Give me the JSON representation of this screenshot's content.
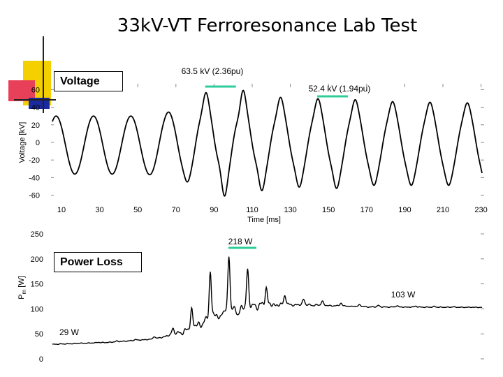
{
  "title": "33kV-VT Ferroresonance Lab Test",
  "accent_colors": {
    "yellow": "#f5d000",
    "red": "#e9405a",
    "blue": "#1a2aa0",
    "marker": "#2ecc9a"
  },
  "chart_data": [
    {
      "type": "line",
      "label": "Voltage",
      "xlabel": "Time [ms]",
      "ylabel": "Voltage [kV]",
      "xlim": [
        0,
        230
      ],
      "ylim": [
        -60,
        60
      ],
      "x_ticks": [
        "10",
        "30",
        "50",
        "70",
        "90",
        "110",
        "130",
        "150",
        "170",
        "190",
        "210",
        "230"
      ],
      "y_ticks": [
        "60",
        "40",
        "20",
        "0",
        "-20",
        "-40",
        "-60"
      ],
      "waveform": {
        "period_ms": 20,
        "amplitude_by_time": [
          [
            0,
            33
          ],
          [
            50,
            33
          ],
          [
            65,
            38
          ],
          [
            75,
            48
          ],
          [
            85,
            58
          ],
          [
            90,
            63.5
          ],
          [
            100,
            60
          ],
          [
            120,
            52
          ],
          [
            140,
            50
          ],
          [
            150,
            52.4
          ],
          [
            170,
            48
          ],
          [
            230,
            47
          ]
        ],
        "offset_by_time": [
          [
            0,
            -3
          ],
          [
            60,
            -3
          ],
          [
            80,
            2
          ],
          [
            110,
            0
          ],
          [
            230,
            -2
          ]
        ]
      },
      "annotations": [
        {
          "text": "63.5 kV (2.36pu)",
          "x": 90,
          "y": 63.5
        },
        {
          "text": "52.4 kV (1.94pu)",
          "x": 150,
          "y": 52.4
        }
      ]
    },
    {
      "type": "line",
      "label": "Power Loss",
      "ylabel": "Pm [W]",
      "ylabel_main": "P",
      "ylabel_sub": "m",
      "ylabel_unit": "[W]",
      "xlim": [
        0,
        230
      ],
      "ylim": [
        0,
        250
      ],
      "y_ticks": [
        "250",
        "200",
        "150",
        "100",
        "50",
        "0"
      ],
      "baseline_by_time": [
        [
          0,
          29
        ],
        [
          30,
          33
        ],
        [
          55,
          40
        ],
        [
          70,
          55
        ],
        [
          80,
          75
        ],
        [
          90,
          95
        ],
        [
          110,
          110
        ],
        [
          140,
          108
        ],
        [
          170,
          104
        ],
        [
          230,
          103
        ]
      ],
      "spike_by_time": [
        [
          0,
          0
        ],
        [
          50,
          2
        ],
        [
          65,
          12
        ],
        [
          75,
          35
        ],
        [
          85,
          95
        ],
        [
          95,
          110
        ],
        [
          105,
          70
        ],
        [
          115,
          30
        ],
        [
          130,
          12
        ],
        [
          160,
          4
        ],
        [
          230,
          0
        ]
      ],
      "annotations": [
        {
          "text": "218 W",
          "x": 97,
          "y": 218
        },
        {
          "text": "103 W",
          "x": 230,
          "y": 103
        },
        {
          "text": "29 W",
          "x": 2,
          "y": 29
        }
      ]
    }
  ]
}
